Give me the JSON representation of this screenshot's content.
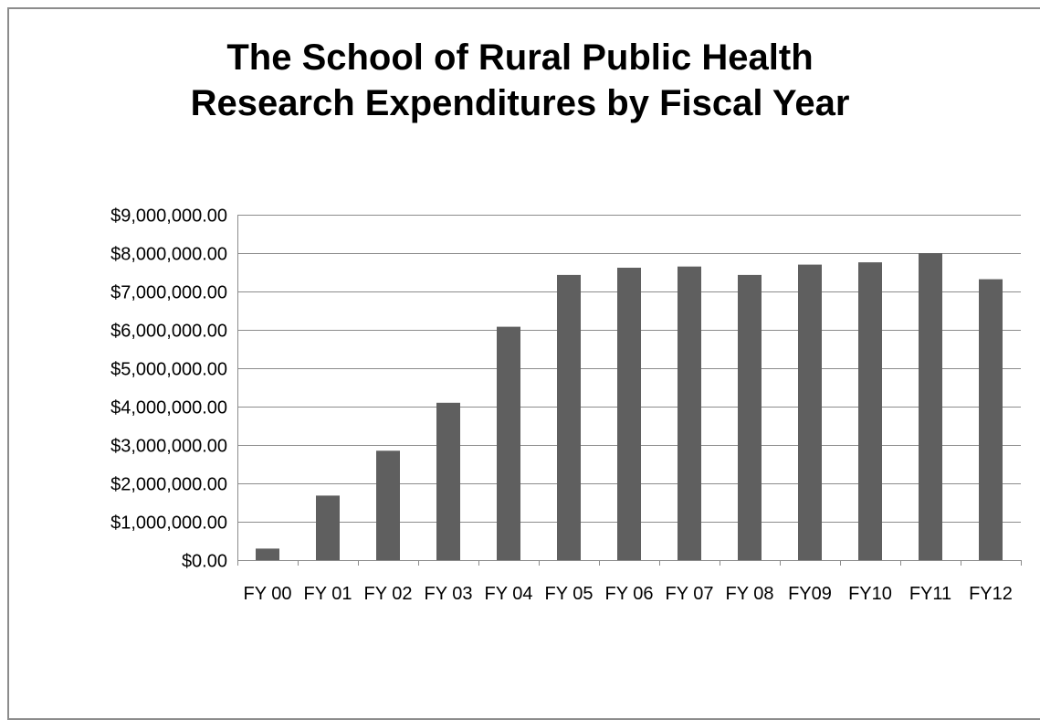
{
  "chart_data": {
    "type": "bar",
    "title": [
      "The School of Rural Public Health",
      "Research Expenditures by Fiscal Year"
    ],
    "xlabel": "",
    "ylabel": "",
    "categories": [
      "FY 00",
      "FY 01",
      "FY 02",
      "FY 03",
      "FY 04",
      "FY 05",
      "FY 06",
      "FY 07",
      "FY 08",
      "FY09",
      "FY10",
      "FY11",
      "FY12"
    ],
    "values": [
      300000,
      1680000,
      2850000,
      4100000,
      6080000,
      7430000,
      7620000,
      7650000,
      7430000,
      7700000,
      7760000,
      8000000,
      7320000
    ],
    "ylim": [
      0,
      9000000
    ],
    "yticks": [
      0,
      1000000,
      2000000,
      3000000,
      4000000,
      5000000,
      6000000,
      7000000,
      8000000,
      9000000
    ],
    "ytick_labels": [
      "$0.00",
      "$1,000,000.00",
      "$2,000,000.00",
      "$3,000,000.00",
      "$4,000,000.00",
      "$5,000,000.00",
      "$6,000,000.00",
      "$7,000,000.00",
      "$8,000,000.00",
      "$9,000,000.00"
    ],
    "grid": true,
    "legend": "none",
    "bar_color": "#5f5f5f",
    "grid_color": "#8c8c8c"
  }
}
